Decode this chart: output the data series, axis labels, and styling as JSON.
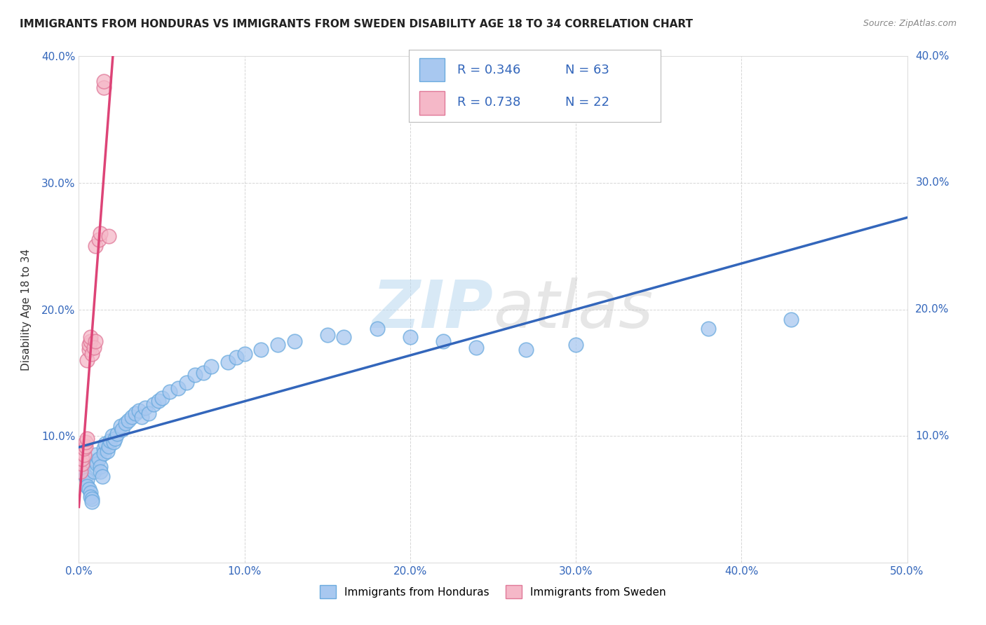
{
  "title": "IMMIGRANTS FROM HONDURAS VS IMMIGRANTS FROM SWEDEN DISABILITY AGE 18 TO 34 CORRELATION CHART",
  "source": "Source: ZipAtlas.com",
  "ylabel": "Disability Age 18 to 34",
  "xlim": [
    0.0,
    0.5
  ],
  "ylim": [
    0.0,
    0.4
  ],
  "xticks": [
    0.0,
    0.1,
    0.2,
    0.3,
    0.4,
    0.5
  ],
  "yticks": [
    0.0,
    0.1,
    0.2,
    0.3,
    0.4
  ],
  "xtick_labels": [
    "0.0%",
    "10.0%",
    "20.0%",
    "30.0%",
    "40.0%",
    "50.0%"
  ],
  "ytick_labels": [
    "",
    "10.0%",
    "20.0%",
    "30.0%",
    "40.0%"
  ],
  "watermark_zip": "ZIP",
  "watermark_atlas": "atlas",
  "series": [
    {
      "name": "Immigrants from Honduras",
      "color": "#a8c8f0",
      "edge_color": "#6aaade",
      "trend_color": "#3366bb",
      "R": 0.346,
      "N": 63,
      "x": [
        0.002,
        0.003,
        0.004,
        0.005,
        0.005,
        0.006,
        0.007,
        0.007,
        0.008,
        0.008,
        0.009,
        0.01,
        0.01,
        0.011,
        0.012,
        0.013,
        0.013,
        0.014,
        0.015,
        0.015,
        0.016,
        0.017,
        0.018,
        0.019,
        0.02,
        0.021,
        0.022,
        0.023,
        0.025,
        0.026,
        0.028,
        0.03,
        0.032,
        0.034,
        0.036,
        0.038,
        0.04,
        0.042,
        0.045,
        0.048,
        0.05,
        0.055,
        0.06,
        0.065,
        0.07,
        0.075,
        0.08,
        0.09,
        0.095,
        0.1,
        0.11,
        0.12,
        0.13,
        0.15,
        0.16,
        0.18,
        0.2,
        0.22,
        0.24,
        0.27,
        0.3,
        0.38,
        0.43
      ],
      "y": [
        0.075,
        0.07,
        0.068,
        0.065,
        0.06,
        0.058,
        0.055,
        0.052,
        0.05,
        0.048,
        0.072,
        0.08,
        0.085,
        0.078,
        0.082,
        0.076,
        0.072,
        0.068,
        0.09,
        0.086,
        0.094,
        0.088,
        0.092,
        0.096,
        0.1,
        0.095,
        0.098,
        0.102,
        0.108,
        0.105,
        0.11,
        0.112,
        0.115,
        0.118,
        0.12,
        0.115,
        0.122,
        0.118,
        0.125,
        0.128,
        0.13,
        0.135,
        0.138,
        0.142,
        0.148,
        0.15,
        0.155,
        0.158,
        0.162,
        0.165,
        0.168,
        0.172,
        0.175,
        0.18,
        0.178,
        0.185,
        0.178,
        0.175,
        0.17,
        0.168,
        0.172,
        0.185,
        0.192
      ]
    },
    {
      "name": "Immigrants from Sweden",
      "color": "#f5b8c8",
      "edge_color": "#e07898",
      "trend_color": "#dd4477",
      "R": 0.738,
      "N": 22,
      "x": [
        0.001,
        0.002,
        0.002,
        0.003,
        0.003,
        0.004,
        0.004,
        0.005,
        0.005,
        0.006,
        0.006,
        0.007,
        0.007,
        0.008,
        0.009,
        0.01,
        0.01,
        0.012,
        0.013,
        0.015,
        0.015,
        0.018
      ],
      "y": [
        0.072,
        0.078,
        0.082,
        0.085,
        0.09,
        0.092,
        0.095,
        0.098,
        0.16,
        0.168,
        0.172,
        0.175,
        0.178,
        0.165,
        0.17,
        0.175,
        0.25,
        0.255,
        0.26,
        0.375,
        0.38,
        0.258
      ]
    }
  ],
  "legend_color": "#3366bb",
  "title_fontsize": 11,
  "axis_label_fontsize": 11,
  "tick_fontsize": 11,
  "legend_fontsize": 13,
  "background_color": "#ffffff",
  "grid_color": "#cccccc",
  "grid_style": "--"
}
